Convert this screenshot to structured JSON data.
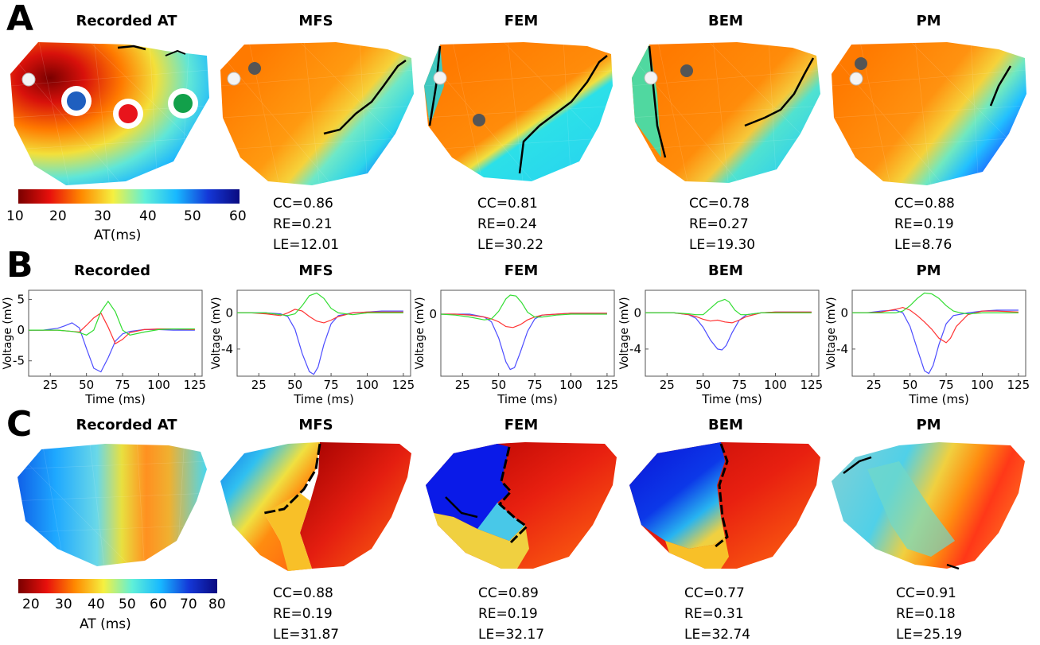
{
  "panels": {
    "A": {
      "letter": "A",
      "titles": [
        "Recorded AT",
        "MFS",
        "FEM",
        "BEM",
        "PM"
      ],
      "metrics": [
        {
          "cc": "CC=0.86",
          "re": "RE=0.21",
          "le": "LE=12.01"
        },
        {
          "cc": "CC=0.81",
          "re": "RE=0.24",
          "le": "LE=30.22"
        },
        {
          "cc": "CC=0.78",
          "re": "RE=0.27",
          "le": "LE=19.30"
        },
        {
          "cc": "CC=0.88",
          "re": "RE=0.19",
          "le": "LE=8.76"
        }
      ],
      "colorbar": {
        "ticks": [
          "10",
          "20",
          "30",
          "40",
          "50",
          "60"
        ],
        "label": "AT(ms)"
      },
      "marker_colors": {
        "blue": "#1f5fbf",
        "red": "#e8141c",
        "green": "#12a04a"
      }
    },
    "B": {
      "letter": "B",
      "titles": [
        "Recorded",
        "MFS",
        "FEM",
        "BEM",
        "PM"
      ],
      "ylabel": "Voltage (mV)",
      "xlabel": "Time (ms)"
    },
    "C": {
      "letter": "C",
      "titles": [
        "Recorded AT",
        "MFS",
        "FEM",
        "BEM",
        "PM"
      ],
      "metrics": [
        {
          "cc": "CC=0.88",
          "re": "RE=0.19",
          "le": "LE=31.87"
        },
        {
          "cc": "CC=0.89",
          "re": "RE=0.19",
          "le": "LE=32.17"
        },
        {
          "cc": "CC=0.77",
          "re": "RE=0.31",
          "le": "LE=32.74"
        },
        {
          "cc": "CC=0.91",
          "re": "RE=0.18",
          "le": "LE=25.19"
        }
      ],
      "colorbar": {
        "ticks": [
          "20",
          "30",
          "40",
          "50",
          "60",
          "70",
          "80"
        ],
        "label": "AT (ms)"
      }
    }
  },
  "chart_data": [
    {
      "type": "line",
      "title": "Recorded",
      "xlabel": "Time (ms)",
      "ylabel": "Voltage (mV)",
      "xlim": [
        10,
        130
      ],
      "ylim": [
        -7.5,
        6.5
      ],
      "xticks": [
        "25",
        "50",
        "75",
        "100",
        "125"
      ],
      "yticks": [
        {
          "v": 5,
          "t": "5"
        },
        {
          "v": 0,
          "t": "0"
        },
        {
          "v": -5,
          "t": "-5"
        }
      ],
      "series": [
        {
          "color": "#4d4dff",
          "x": [
            10,
            20,
            30,
            35,
            40,
            45,
            50,
            55,
            60,
            65,
            70,
            75,
            80,
            90,
            100,
            110,
            125
          ],
          "y": [
            0,
            0,
            0.3,
            0.7,
            1.2,
            0.4,
            -3,
            -6.2,
            -6.8,
            -4.5,
            -1.8,
            -0.6,
            -0.2,
            0.1,
            0.1,
            0,
            0
          ]
        },
        {
          "color": "#ff3333",
          "x": [
            10,
            20,
            30,
            40,
            45,
            50,
            55,
            60,
            65,
            70,
            75,
            80,
            90,
            100,
            110,
            125
          ],
          "y": [
            0,
            0,
            0,
            -0.2,
            -0.3,
            0.8,
            2,
            2.8,
            0.5,
            -2.2,
            -1.5,
            -0.4,
            0.1,
            0.2,
            0.2,
            0.1
          ]
        },
        {
          "color": "#33dd33",
          "x": [
            10,
            20,
            30,
            40,
            45,
            50,
            55,
            60,
            65,
            70,
            75,
            80,
            90,
            100,
            110,
            125
          ],
          "y": [
            0,
            0,
            0,
            -0.2,
            -0.4,
            -0.8,
            0,
            3,
            4.7,
            3,
            0,
            -0.8,
            -0.3,
            0.1,
            0.2,
            0.2
          ]
        }
      ]
    },
    {
      "type": "line",
      "title": "MFS",
      "xlabel": "Time (ms)",
      "ylabel": "Voltage (mV)",
      "xlim": [
        10,
        130
      ],
      "ylim": [
        -7,
        2.5
      ],
      "xticks": [
        "25",
        "50",
        "75",
        "100",
        "125"
      ],
      "yticks": [
        {
          "v": 0,
          "t": "0"
        },
        {
          "v": -4,
          "t": "-4"
        }
      ],
      "series": [
        {
          "color": "#4d4dff",
          "x": [
            10,
            20,
            30,
            40,
            45,
            50,
            55,
            60,
            63,
            66,
            70,
            75,
            80,
            90,
            100,
            110,
            125
          ],
          "y": [
            0,
            0,
            0,
            -0.1,
            -0.4,
            -1.8,
            -4.5,
            -6.5,
            -6.8,
            -6,
            -3.5,
            -1.2,
            -0.3,
            0,
            0.1,
            0.2,
            0.2
          ]
        },
        {
          "color": "#ff3333",
          "x": [
            10,
            20,
            30,
            40,
            45,
            50,
            55,
            60,
            65,
            70,
            75,
            80,
            90,
            100,
            110,
            125
          ],
          "y": [
            0,
            0,
            -0.1,
            -0.3,
            0,
            0.4,
            0.2,
            -0.4,
            -0.9,
            -1.1,
            -0.8,
            -0.4,
            0,
            0.1,
            0.1,
            0.1
          ]
        },
        {
          "color": "#33dd33",
          "x": [
            10,
            20,
            30,
            40,
            45,
            50,
            55,
            60,
            65,
            70,
            75,
            80,
            90,
            100,
            110,
            125
          ],
          "y": [
            0,
            0,
            0,
            -0.2,
            -0.3,
            -0.1,
            0.8,
            1.9,
            2.2,
            1.6,
            0.5,
            0,
            -0.2,
            0,
            0,
            0
          ]
        }
      ]
    },
    {
      "type": "line",
      "title": "FEM",
      "xlabel": "Time (ms)",
      "ylabel": "Voltage (mV)",
      "xlim": [
        10,
        130
      ],
      "ylim": [
        -6.5,
        2.5
      ],
      "xticks": [
        "25",
        "50",
        "75",
        "100",
        "125"
      ],
      "yticks": [
        {
          "v": 0,
          "t": "0"
        }
      ],
      "series": [
        {
          "color": "#4d4dff",
          "x": [
            10,
            20,
            30,
            40,
            45,
            50,
            55,
            58,
            61,
            65,
            70,
            75,
            80,
            90,
            100,
            110,
            125
          ],
          "y": [
            0,
            0,
            0,
            -0.3,
            -0.8,
            -2.5,
            -5,
            -5.8,
            -5.6,
            -4,
            -1.8,
            -0.5,
            -0.1,
            0,
            0.1,
            0.1,
            0.1
          ]
        },
        {
          "color": "#ff3333",
          "x": [
            10,
            20,
            30,
            40,
            45,
            50,
            55,
            60,
            65,
            70,
            75,
            80,
            90,
            100,
            110,
            125
          ],
          "y": [
            0,
            0,
            -0.1,
            -0.3,
            -0.5,
            -0.8,
            -1.3,
            -1.4,
            -1.1,
            -0.6,
            -0.3,
            -0.1,
            0,
            0.1,
            0.1,
            0.1
          ]
        },
        {
          "color": "#33dd33",
          "x": [
            10,
            20,
            30,
            40,
            45,
            50,
            55,
            58,
            62,
            66,
            70,
            75,
            80,
            90,
            100,
            110,
            125
          ],
          "y": [
            0,
            -0.1,
            -0.3,
            -0.6,
            -0.5,
            0.3,
            1.6,
            2,
            1.9,
            1.2,
            0.2,
            -0.3,
            -0.3,
            -0.1,
            0,
            0,
            0
          ]
        }
      ]
    },
    {
      "type": "line",
      "title": "BEM",
      "xlabel": "Time (ms)",
      "ylabel": "Voltage (mV)",
      "xlim": [
        10,
        130
      ],
      "ylim": [
        -7,
        2.5
      ],
      "xticks": [
        "25",
        "50",
        "75",
        "100",
        "125"
      ],
      "yticks": [
        {
          "v": 0,
          "t": "0"
        },
        {
          "v": -4,
          "t": "-4"
        }
      ],
      "series": [
        {
          "color": "#4d4dff",
          "x": [
            10,
            20,
            30,
            40,
            45,
            50,
            55,
            60,
            63,
            66,
            70,
            75,
            80,
            90,
            100,
            110,
            125
          ],
          "y": [
            0,
            0,
            0,
            -0.2,
            -0.6,
            -1.6,
            -3,
            -4,
            -4.1,
            -3.6,
            -2.2,
            -0.8,
            -0.2,
            0,
            0.1,
            0.1,
            0.1
          ]
        },
        {
          "color": "#ff3333",
          "x": [
            10,
            20,
            30,
            40,
            45,
            50,
            55,
            60,
            65,
            70,
            75,
            80,
            90,
            100,
            110,
            125
          ],
          "y": [
            0,
            0,
            0,
            -0.2,
            -0.4,
            -0.7,
            -0.9,
            -0.8,
            -1,
            -1.1,
            -0.8,
            -0.4,
            0,
            0.1,
            0.1,
            0.1
          ]
        },
        {
          "color": "#33dd33",
          "x": [
            10,
            20,
            30,
            40,
            45,
            50,
            55,
            60,
            65,
            68,
            72,
            76,
            80,
            90,
            100,
            110,
            125
          ],
          "y": [
            0,
            0,
            0,
            -0.1,
            -0.2,
            -0.2,
            0.5,
            1.2,
            1.5,
            1.2,
            0.3,
            -0.2,
            -0.2,
            0,
            0,
            0,
            0
          ]
        }
      ]
    },
    {
      "type": "line",
      "title": "PM",
      "xlabel": "Time (ms)",
      "ylabel": "Voltage (mV)",
      "xlim": [
        10,
        130
      ],
      "ylim": [
        -7,
        2.5
      ],
      "xticks": [
        "25",
        "50",
        "75",
        "100",
        "125"
      ],
      "yticks": [
        {
          "v": 0,
          "t": "0"
        },
        {
          "v": -4,
          "t": "-4"
        }
      ],
      "series": [
        {
          "color": "#4d4dff",
          "x": [
            10,
            20,
            30,
            40,
            45,
            50,
            55,
            60,
            63,
            66,
            70,
            75,
            80,
            90,
            100,
            110,
            125
          ],
          "y": [
            0,
            0,
            0.2,
            0.3,
            0,
            -1.5,
            -4,
            -6.4,
            -6.7,
            -5.8,
            -3.5,
            -1.2,
            -0.3,
            0,
            0.2,
            0.3,
            0.3
          ]
        },
        {
          "color": "#ff3333",
          "x": [
            10,
            20,
            30,
            40,
            45,
            50,
            55,
            60,
            65,
            70,
            75,
            78,
            82,
            90,
            100,
            110,
            125
          ],
          "y": [
            0,
            0,
            0.1,
            0.4,
            0.6,
            0.3,
            -0.3,
            -1,
            -1.8,
            -2.8,
            -3.3,
            -2.8,
            -1.5,
            -0.2,
            0.2,
            0.2,
            0.1
          ]
        },
        {
          "color": "#33dd33",
          "x": [
            10,
            20,
            30,
            40,
            45,
            50,
            55,
            60,
            65,
            70,
            75,
            80,
            85,
            90,
            100,
            110,
            125
          ],
          "y": [
            0,
            0,
            0,
            0,
            0.2,
            0.8,
            1.6,
            2.2,
            2.1,
            1.6,
            0.8,
            0.2,
            0,
            -0.1,
            0,
            0,
            0
          ]
        }
      ]
    }
  ]
}
